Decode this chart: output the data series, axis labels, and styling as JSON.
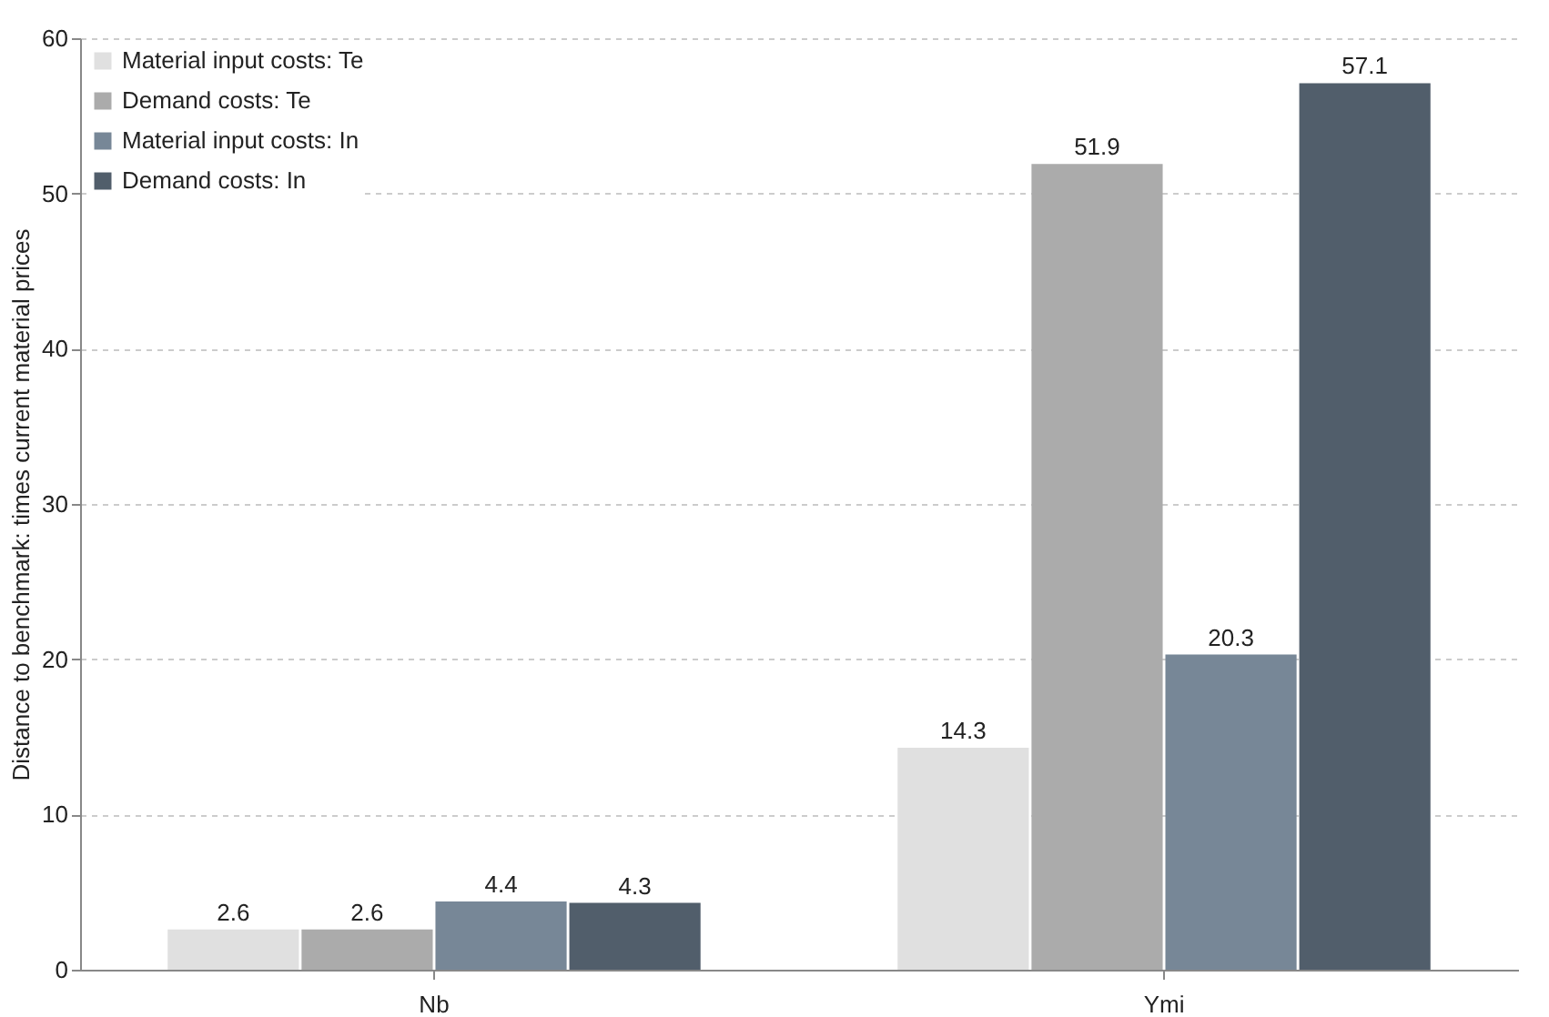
{
  "chart_data": {
    "type": "bar",
    "ylabel": "Distance to benchmark: times current material prices",
    "categories": [
      "Nb",
      "Ymi"
    ],
    "series": [
      {
        "name": "Material input costs: Te",
        "color": "#e0e0e0",
        "values": [
          2.6,
          14.3
        ]
      },
      {
        "name": "Demand costs: Te",
        "color": "#ababab",
        "values": [
          2.6,
          51.9
        ]
      },
      {
        "name": "Material input costs: In",
        "color": "#778797",
        "values": [
          4.4,
          20.3
        ]
      },
      {
        "name": "Demand costs: In",
        "color": "#515e6b",
        "values": [
          4.3,
          57.1
        ]
      }
    ],
    "ylim": [
      0,
      60
    ],
    "yticks": [
      0,
      10,
      20,
      30,
      40,
      50,
      60
    ],
    "grid": "y",
    "legend": "top left",
    "data_labels": true
  }
}
